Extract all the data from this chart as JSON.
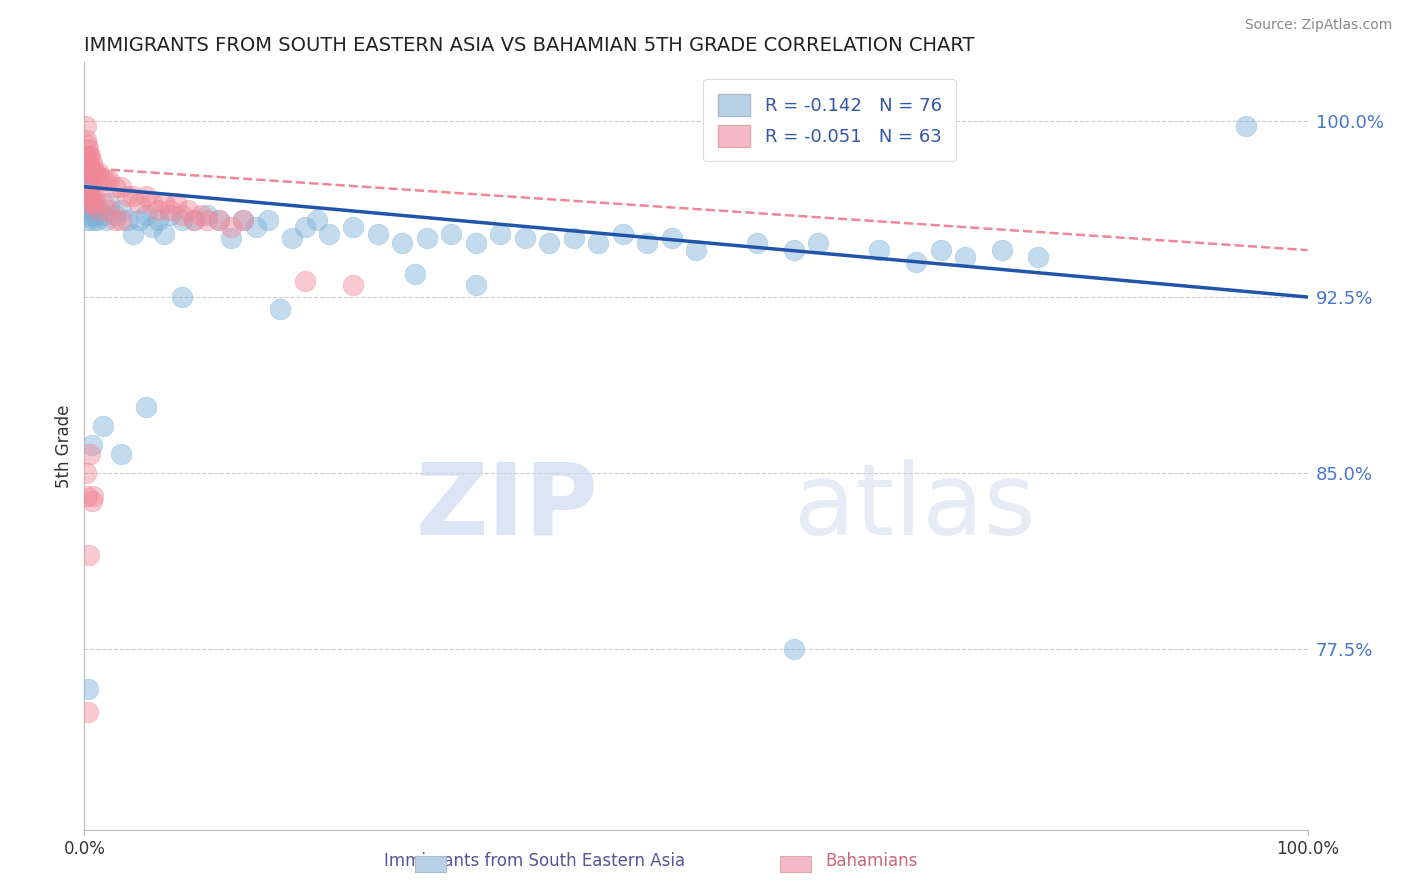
{
  "title": "IMMIGRANTS FROM SOUTH EASTERN ASIA VS BAHAMIAN 5TH GRADE CORRELATION CHART",
  "source": "Source: ZipAtlas.com",
  "ylabel": "5th Grade",
  "watermark_zip": "ZIP",
  "watermark_atlas": "atlas",
  "xlim": [
    0.0,
    1.0
  ],
  "ylim": [
    0.698,
    1.025
  ],
  "yticks": [
    0.775,
    0.85,
    0.925,
    1.0
  ],
  "ytick_labels": [
    "77.5%",
    "85.0%",
    "92.5%",
    "100.0%"
  ],
  "xticks": [
    0.0,
    1.0
  ],
  "xtick_labels": [
    "0.0%",
    "100.0%"
  ],
  "legend_entries": [
    {
      "label": "R = -0.142   N = 76",
      "color": "#b8d0e8"
    },
    {
      "label": "R = -0.051   N = 63",
      "color": "#f5b8c8"
    }
  ],
  "blue_color": "#7ab0d8",
  "pink_color": "#f08898",
  "blue_line_color": "#2255aa",
  "pink_line_color": "#ee8899",
  "title_color": "#222222",
  "axis_color": "#bbbbbb",
  "grid_color": "#cccccc",
  "blue_scatter_x": [
    0.001,
    0.001,
    0.002,
    0.002,
    0.003,
    0.003,
    0.004,
    0.004,
    0.005,
    0.005,
    0.006,
    0.007,
    0.008,
    0.009,
    0.01,
    0.012,
    0.015,
    0.018,
    0.02,
    0.025,
    0.03,
    0.035,
    0.04,
    0.045,
    0.05,
    0.055,
    0.06,
    0.065,
    0.07,
    0.08,
    0.09,
    0.1,
    0.11,
    0.12,
    0.13,
    0.14,
    0.15,
    0.17,
    0.18,
    0.19,
    0.2,
    0.22,
    0.24,
    0.26,
    0.28,
    0.3,
    0.32,
    0.34,
    0.36,
    0.38,
    0.4,
    0.42,
    0.44,
    0.46,
    0.48,
    0.5,
    0.55,
    0.58,
    0.6,
    0.65,
    0.7,
    0.72,
    0.75,
    0.78,
    0.32,
    0.27,
    0.16,
    0.08,
    0.05,
    0.03,
    0.015,
    0.006,
    0.003,
    0.58,
    0.95,
    0.68
  ],
  "blue_scatter_y": [
    0.972,
    0.968,
    0.975,
    0.964,
    0.97,
    0.958,
    0.965,
    0.962,
    0.968,
    0.96,
    0.965,
    0.958,
    0.962,
    0.96,
    0.958,
    0.962,
    0.96,
    0.958,
    0.965,
    0.96,
    0.962,
    0.958,
    0.952,
    0.958,
    0.96,
    0.955,
    0.958,
    0.952,
    0.96,
    0.958,
    0.958,
    0.96,
    0.958,
    0.95,
    0.958,
    0.955,
    0.958,
    0.95,
    0.955,
    0.958,
    0.952,
    0.955,
    0.952,
    0.948,
    0.95,
    0.952,
    0.948,
    0.952,
    0.95,
    0.948,
    0.95,
    0.948,
    0.952,
    0.948,
    0.95,
    0.945,
    0.948,
    0.945,
    0.948,
    0.945,
    0.945,
    0.942,
    0.945,
    0.942,
    0.93,
    0.935,
    0.92,
    0.925,
    0.878,
    0.858,
    0.87,
    0.862,
    0.758,
    0.775,
    0.998,
    0.94
  ],
  "pink_scatter_x": [
    0.001,
    0.001,
    0.001,
    0.002,
    0.002,
    0.002,
    0.003,
    0.003,
    0.004,
    0.004,
    0.005,
    0.005,
    0.006,
    0.006,
    0.007,
    0.008,
    0.009,
    0.01,
    0.012,
    0.015,
    0.018,
    0.02,
    0.025,
    0.03,
    0.035,
    0.04,
    0.045,
    0.05,
    0.055,
    0.06,
    0.065,
    0.07,
    0.075,
    0.08,
    0.085,
    0.09,
    0.095,
    0.1,
    0.11,
    0.12,
    0.13,
    0.002,
    0.003,
    0.004,
    0.005,
    0.006,
    0.007,
    0.008,
    0.009,
    0.01,
    0.015,
    0.02,
    0.025,
    0.03,
    0.18,
    0.22,
    0.001,
    0.002,
    0.003,
    0.004,
    0.005,
    0.006,
    0.007
  ],
  "pink_scatter_y": [
    0.998,
    0.992,
    0.985,
    0.99,
    0.985,
    0.98,
    0.988,
    0.982,
    0.985,
    0.978,
    0.985,
    0.98,
    0.982,
    0.978,
    0.98,
    0.978,
    0.978,
    0.975,
    0.978,
    0.975,
    0.975,
    0.975,
    0.972,
    0.972,
    0.968,
    0.968,
    0.965,
    0.968,
    0.965,
    0.962,
    0.965,
    0.962,
    0.965,
    0.96,
    0.962,
    0.958,
    0.96,
    0.958,
    0.958,
    0.955,
    0.958,
    0.968,
    0.965,
    0.972,
    0.968,
    0.965,
    0.968,
    0.965,
    0.968,
    0.962,
    0.965,
    0.962,
    0.958,
    0.958,
    0.932,
    0.93,
    0.85,
    0.84,
    0.748,
    0.815,
    0.858,
    0.838,
    0.84
  ],
  "blue_trend_x": [
    0.0,
    1.0
  ],
  "blue_trend_y": [
    0.972,
    0.925
  ],
  "pink_trend_x": [
    0.0,
    1.0
  ],
  "pink_trend_y": [
    0.98,
    0.945
  ],
  "bottom_legend_blue_label": "Immigrants from South Eastern Asia",
  "bottom_legend_pink_label": "Bahamians"
}
